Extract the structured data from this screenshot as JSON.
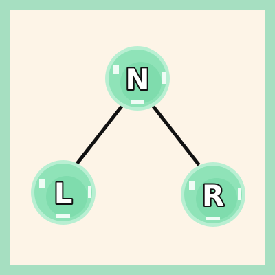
{
  "diagram": {
    "type": "binary-tree",
    "colors": {
      "background": "#fdf4e7",
      "border": "#a6dfc1",
      "node_fill": "#8fe3b8",
      "node_rim": "#b8efd2",
      "node_highlight": "#effcf5",
      "node_shadow": "#6fcf9e",
      "edge": "#111111"
    },
    "nodes": [
      {
        "id": "root",
        "label": "N"
      },
      {
        "id": "left",
        "label": "L"
      },
      {
        "id": "right",
        "label": "R"
      }
    ],
    "edges": [
      {
        "from": "root",
        "to": "left"
      },
      {
        "from": "root",
        "to": "right"
      }
    ]
  }
}
